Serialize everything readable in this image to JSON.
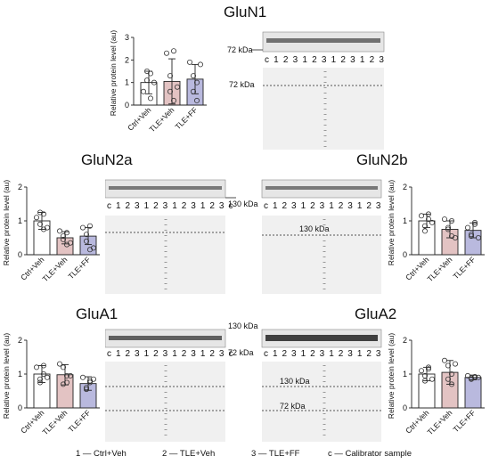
{
  "legend": {
    "item1": "1 — Ctrl+Veh",
    "item2": "2 — TLE+Veh",
    "item3": "3 — TLE+FF",
    "itemc": "c — Calibrator sample"
  },
  "blots": {
    "glun1": {
      "marker": "72 kDa",
      "lanes": "c 1 2 3 1 2 3 1 2 3 1 2 3 c"
    },
    "glun2a": {
      "marker": "130 kDa",
      "lanes": "c 1 2 3 1 2 3 1 2 3 1 2 3 c"
    },
    "glun2b": {
      "marker": "130 kDa",
      "lanes": "c 1 2 3 1 2 3 1 2 3 1 2 3 c"
    },
    "glua1": {
      "marker1": "130 kDa",
      "marker2": "72 kDa",
      "lanes": "c 1 2 3 1 2 3 1 2 3 1 2 3 c"
    },
    "glua2": {
      "marker1": "130 kDa",
      "marker2": "72 kDa",
      "lanes": "c 1 2 3 1 2 3 1 2 3 1 2 3 c"
    }
  },
  "chart_data": [
    {
      "type": "bar",
      "title": "GluN1",
      "ylabel": "Relative protein level (au)",
      "ylim": [
        0,
        3
      ],
      "yticks": [
        0,
        1,
        2,
        3
      ],
      "categories": [
        "Ctrl+Veh",
        "TLE+Veh",
        "TLE+FF"
      ],
      "values": [
        1.0,
        1.05,
        1.15
      ],
      "errors": [
        0.5,
        1.0,
        0.65
      ],
      "points": [
        [
          0.6,
          1.5,
          0.3,
          1.1,
          1.4,
          1.0
        ],
        [
          2.3,
          0.6,
          0.2,
          1.3,
          2.4,
          0.8
        ],
        [
          1.9,
          0.6,
          0.2,
          1.3,
          1.0,
          1.8
        ]
      ],
      "colors": [
        "#ffffff",
        "#e3c3c3",
        "#b9b9de"
      ]
    },
    {
      "type": "bar",
      "title": "GluN2a",
      "ylabel": "Relative protein level (au)",
      "ylim": [
        0,
        2
      ],
      "yticks": [
        0,
        1,
        2
      ],
      "categories": [
        "Ctrl+Veh",
        "TLE+Veh",
        "TLE+FF"
      ],
      "values": [
        1.0,
        0.5,
        0.55
      ],
      "errors": [
        0.25,
        0.18,
        0.25
      ],
      "points": [
        [
          1.1,
          1.25,
          0.75,
          0.9,
          1.2,
          0.8
        ],
        [
          0.7,
          0.55,
          0.3,
          0.45,
          0.65,
          0.35
        ],
        [
          0.8,
          0.4,
          0.15,
          0.6,
          0.85,
          0.2
        ]
      ],
      "colors": [
        "#ffffff",
        "#e3c3c3",
        "#b9b9de"
      ]
    },
    {
      "type": "bar",
      "title": "GluN2b",
      "ylabel": "Relative protein level (au)",
      "ylim": [
        0,
        2
      ],
      "yticks": [
        0,
        1,
        2
      ],
      "categories": [
        "Ctrl+Veh",
        "TLE+Veh",
        "TLE+FF"
      ],
      "values": [
        1.0,
        0.75,
        0.72
      ],
      "errors": [
        0.2,
        0.25,
        0.22
      ],
      "points": [
        [
          1.15,
          0.85,
          1.05,
          0.7,
          1.2,
          0.95
        ],
        [
          1.05,
          0.8,
          0.55,
          0.75,
          1.0,
          0.5
        ],
        [
          0.8,
          0.55,
          0.9,
          0.6,
          0.95,
          0.5
        ]
      ],
      "colors": [
        "#ffffff",
        "#e3c3c3",
        "#b9b9de"
      ]
    },
    {
      "type": "bar",
      "title": "GluA1",
      "ylabel": "Relative protein level (au)",
      "ylim": [
        0,
        2
      ],
      "yticks": [
        0,
        1,
        2
      ],
      "categories": [
        "Ctrl+Veh",
        "TLE+Veh",
        "TLE+FF"
      ],
      "values": [
        1.0,
        0.98,
        0.72
      ],
      "errors": [
        0.25,
        0.3,
        0.2
      ],
      "points": [
        [
          1.2,
          0.85,
          1.0,
          0.75,
          1.25,
          0.9
        ],
        [
          1.3,
          0.7,
          0.95,
          1.2,
          0.75,
          0.95
        ],
        [
          0.9,
          0.6,
          0.8,
          0.55,
          0.75,
          0.85
        ]
      ],
      "colors": [
        "#ffffff",
        "#e3c3c3",
        "#b9b9de"
      ]
    },
    {
      "type": "bar",
      "title": "GluA2",
      "ylabel": "Relative protein level (au)",
      "ylim": [
        0,
        2
      ],
      "yticks": [
        0,
        1,
        2
      ],
      "categories": [
        "Ctrl+Veh",
        "TLE+Veh",
        "TLE+FF"
      ],
      "values": [
        1.0,
        1.05,
        0.9
      ],
      "errors": [
        0.2,
        0.35,
        0.07
      ],
      "points": [
        [
          1.1,
          0.8,
          1.2,
          0.95,
          1.15,
          0.85
        ],
        [
          1.4,
          0.85,
          0.7,
          1.25,
          1.0,
          1.3
        ],
        [
          0.95,
          0.88,
          0.9,
          0.85,
          0.92,
          0.9
        ]
      ],
      "colors": [
        "#ffffff",
        "#e3c3c3",
        "#b9b9de"
      ]
    }
  ]
}
